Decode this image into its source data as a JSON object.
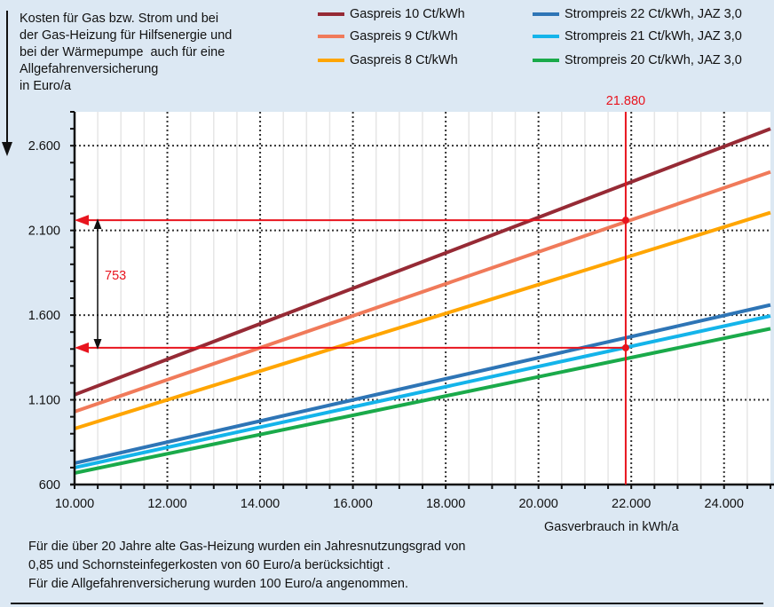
{
  "chart_data": {
    "type": "line",
    "ylabel": "Kosten für Gas bzw. Strom und bei\nder Gas-Heizung für Hilfsenergie und\nbei der Wärmepumpe  auch für eine\nAllgefahrenversicherung\nin Euro/a",
    "xlabel": "Gasverbrauch in kWh/a",
    "xlim": [
      10000,
      25000
    ],
    "ylim": [
      600,
      2800
    ],
    "xticks": [
      10000,
      12000,
      14000,
      16000,
      18000,
      20000,
      22000,
      24000
    ],
    "xtick_labels": [
      "10.000",
      "12.000",
      "14.000",
      "16.000",
      "18.000",
      "20.000",
      "22.000",
      "24.000"
    ],
    "yticks": [
      600,
      1100,
      1600,
      2100,
      2600
    ],
    "ytick_labels": [
      "600",
      "1.100",
      "1.600",
      "2.100",
      "2.600"
    ],
    "grid": true,
    "legend_position": "top",
    "series": [
      {
        "name": "Gaspreis 10 Ct/kWh",
        "color": "#962a35",
        "x": [
          10000,
          25000
        ],
        "y": [
          1130,
          2700
        ]
      },
      {
        "name": "Gaspreis 9 Ct/kWh",
        "color": "#f07a5a",
        "x": [
          10000,
          25000
        ],
        "y": [
          1030,
          2445
        ]
      },
      {
        "name": "Gaspreis 8 Ct/kWh",
        "color": "#ffa500",
        "x": [
          10000,
          25000
        ],
        "y": [
          930,
          2205
        ]
      },
      {
        "name": "Strompreis 22 Ct/kWh, JAZ 3,0",
        "color": "#2e75b6",
        "x": [
          10000,
          25000
        ],
        "y": [
          726,
          1660
        ]
      },
      {
        "name": "Strompreis 21 Ct/kWh, JAZ 3,0",
        "color": "#14b4ea",
        "x": [
          10000,
          25000
        ],
        "y": [
          700,
          1595
        ]
      },
      {
        "name": "Strompreis 20 Ct/kWh, JAZ 3,0",
        "color": "#1aaa4a",
        "x": [
          10000,
          25000
        ],
        "y": [
          668,
          1520
        ]
      }
    ],
    "annotations": {
      "x_marker": 21880,
      "x_marker_label": "21.880",
      "y_upper": 2160,
      "y_lower": 1407,
      "difference_label": "753",
      "color": "#e8141e"
    }
  },
  "note": "Für die über 20 Jahre alte Gas-Heizung wurden ein Jahresnutzungsgrad von\n0,85 und Schornsteinfegerkosten von 60 Euro/a berücksichtigt .\nFür die Allgefahrenversicherung wurden 100 Euro/a angenommen."
}
